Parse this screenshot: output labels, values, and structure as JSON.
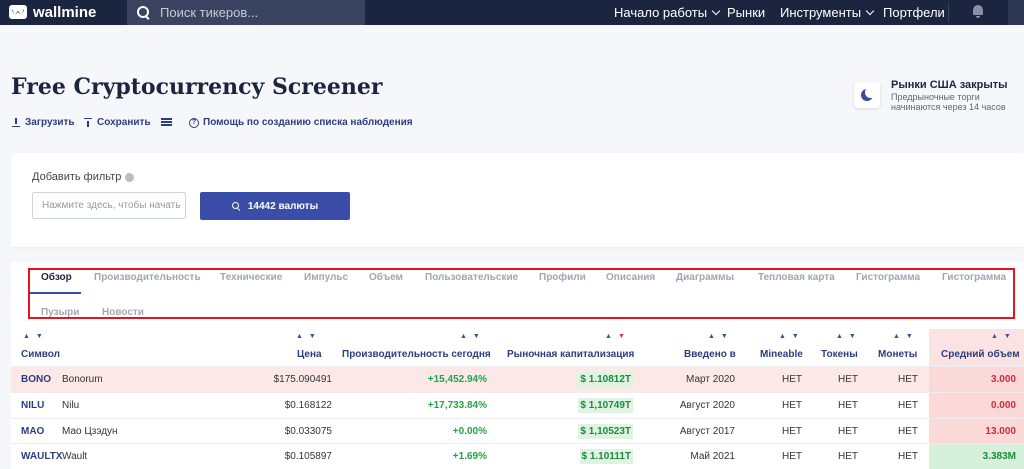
{
  "nav": {
    "logo": "wallmine",
    "search_placeholder": "Поиск тикеров...",
    "items": [
      {
        "label": "Начало работы",
        "dropdown": true
      },
      {
        "label": "Рынки",
        "dropdown": false
      },
      {
        "label": "Инструменты",
        "dropdown": true
      },
      {
        "label": "Портфели",
        "dropdown": false
      }
    ]
  },
  "page": {
    "title": "Free Cryptocurrency Screener",
    "toolbar": {
      "load": "Загрузить",
      "save": "Сохранить",
      "help": "Помощь по созданию списка наблюдения"
    }
  },
  "market_status": {
    "title": "Рынки США закрыты",
    "subtitle": "Предрыночные торги начинаются через 14 часов"
  },
  "filter": {
    "label": "Добавить фильтр",
    "input_placeholder": "Нажмите здесь, чтобы начать",
    "button": "14442 валюты"
  },
  "tabs": [
    "Обзор",
    "Производительность",
    "Технические",
    "Импульс",
    "Объем",
    "Пользовательские",
    "Профили",
    "Описания",
    "Диаграммы",
    "Тепловая карта",
    "Гистограмма",
    "Гистограмма",
    "Пузыри",
    "Новости"
  ],
  "active_tab": "Обзор",
  "table": {
    "columns": [
      "Символ",
      "Цена",
      "Производительность сегодня",
      "Рыночная капитализация",
      "Введено в",
      "Mineable",
      "Токены",
      "Монеты",
      "Средний объем"
    ],
    "sorted_column": "Рыночная капитализация",
    "rows": [
      {
        "symbol": "BONO",
        "name": "Bonorum",
        "price": "$175.090491",
        "perf": "+15,452.94%",
        "cap": "$ 1.10812T",
        "introduced": "Март 2020",
        "mineable": "НЕТ",
        "tokens": "НЕТ",
        "coins": "НЕТ",
        "volume": "3.000",
        "volume_tone": "red",
        "highlight": true
      },
      {
        "symbol": "NILU",
        "name": "Nilu",
        "price": "$0.168122",
        "perf": "+17,733.84%",
        "cap": "$ 1,10749T",
        "introduced": "Август 2020",
        "mineable": "НЕТ",
        "tokens": "НЕТ",
        "coins": "НЕТ",
        "volume": "0.000",
        "volume_tone": "red",
        "highlight": false
      },
      {
        "symbol": "MAO",
        "name": "Мао Цзэдун",
        "price": "$0.033075",
        "perf": "+0.00%",
        "cap": "$ 1,10523T",
        "introduced": "Август 2017",
        "mineable": "НЕТ",
        "tokens": "НЕТ",
        "coins": "НЕТ",
        "volume": "13.000",
        "volume_tone": "red",
        "highlight": false
      },
      {
        "symbol": "WAULTX",
        "name": "Wault",
        "price": "$0.105897",
        "perf": "+1.69%",
        "cap": "$ 1.10111T",
        "introduced": "Май 2021",
        "mineable": "НЕТ",
        "tokens": "НЕТ",
        "coins": "НЕТ",
        "volume": "3.383M",
        "volume_tone": "green",
        "highlight": false
      }
    ]
  }
}
